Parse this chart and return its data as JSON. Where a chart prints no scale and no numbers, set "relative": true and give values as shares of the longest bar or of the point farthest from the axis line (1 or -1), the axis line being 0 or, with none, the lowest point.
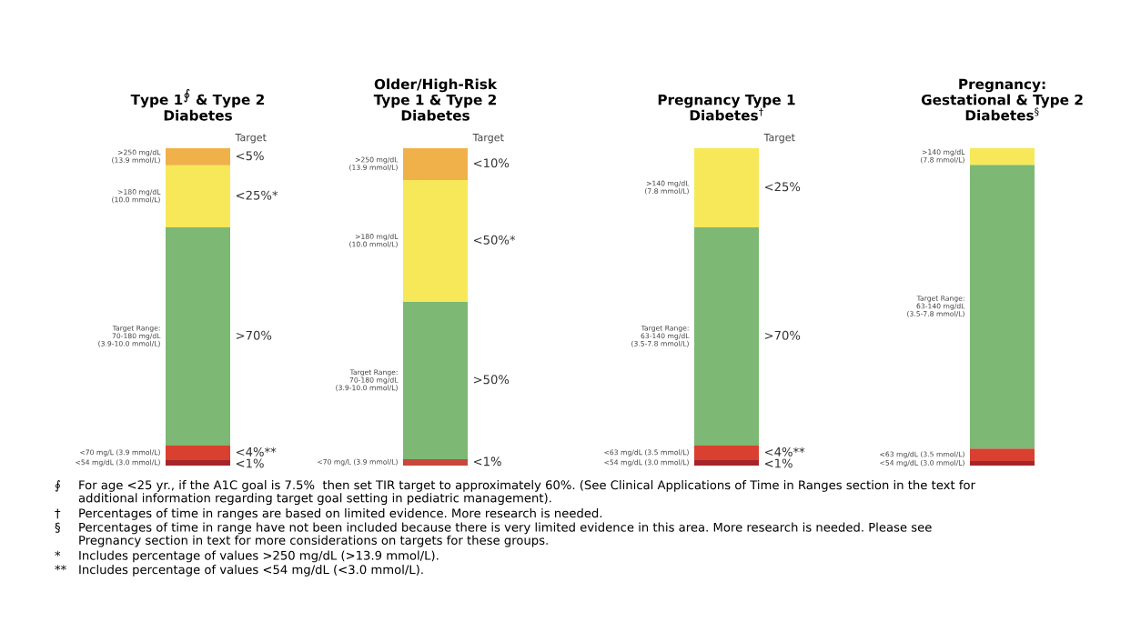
{
  "chart_data": [
    {
      "type": "bar",
      "title": "Type 1$^{∮}$ & Type 2\nDiabetes",
      "categories": [
        null
      ],
      "stacked": true,
      "relative": true,
      "series": [
        {
          "name": "<54 mg/dL (3.0 mmol/L)",
          "color": "#a5252a",
          "values": [
            0.017
          ]
        },
        {
          "name": "<70 mg/L (3.9 mmol/L)",
          "color": "#d9402f",
          "values": [
            0.046
          ]
        },
        {
          "name": "Target Range:\n70-180 mg/dL\n(3.9-10.0 mmol/L)",
          "color": "#7db874",
          "values": [
            0.688
          ]
        },
        {
          "name": ">180 mg/dL\n(10.0 mmol/L)",
          "color": "#f7e85a",
          "values": [
            0.195
          ]
        },
        {
          "name": ">250 mg/dL\n(13.9 mmol/L)",
          "color": "#f0b04a",
          "values": [
            0.054
          ]
        }
      ],
      "annotations": [
        "Target",
        "<5%",
        "<25%*",
        ">70%",
        "<4%**",
        "<1%",
        "∮ For age <25 yr., if the A1C goal is 7.5%  then set TIR target to approximately 60%. (See Clinical Applications of Time in Ranges section in the text for\nadditional information regarding target goal setting in pediatric management).",
        "† Percentages of time in ranges are based on limited evidence. More research is needed.",
        "§ Percentages of time in range have not been included because there is very limited evidence in this area. More research is needed. Please see\nPregnancy section in text for more considerations on targets for these groups.",
        "* Includes percentage of values >250 mg/dL (>13.9 mmol/L).",
        "** Includes percentage of values <54 mg/dL (<3.0 mmol/L)."
      ]
    },
    {
      "type": "bar",
      "title": "Older/High-Risk\nType 1 & Type 2\nDiabetes",
      "categories": [
        null
      ],
      "stacked": true,
      "relative": true,
      "series": [
        {
          "name": "<70 mg/L (3.9 mmol/L)",
          "color": "#c8473a",
          "values": [
            0.02
          ]
        },
        {
          "name": "Target Range:\n70-180 mg/dL\n(3.9-10.0 mmol/L)",
          "color": "#7db874",
          "values": [
            0.496
          ]
        },
        {
          "name": ">180 mg/dL\n(10.0 mmol/L)",
          "color": "#f7e85a",
          "values": [
            0.384
          ]
        },
        {
          "name": ">250 mg/dL\n(13.9 mmol/L)",
          "color": "#f0b04a",
          "values": [
            0.1
          ]
        }
      ],
      "annotations": [
        "Target",
        "<10%",
        "<50%*",
        ">50%",
        "<1%"
      ]
    },
    {
      "type": "bar",
      "title": "Pregnancy Type 1\nDiabetes$^{†}$",
      "categories": [
        null
      ],
      "stacked": true,
      "relative": true,
      "series": [
        {
          "name": "<54 mg/dL (3.0 mmol/L)",
          "color": "#a5252a",
          "values": [
            0.017
          ]
        },
        {
          "name": "<63 mg/dL (3.5 mmol/L)",
          "color": "#d9402f",
          "values": [
            0.046
          ]
        },
        {
          "name": "Target Range:\n63-140 mg/dL\n(3.5-7.8 mmol/L)",
          "color": "#7db874",
          "values": [
            0.688
          ]
        },
        {
          "name": ">140 mg/dL\n(7.8 mmol/L)",
          "color": "#f7e85a",
          "values": [
            0.249
          ]
        }
      ],
      "annotations": [
        "Target",
        "<25%",
        ">70%",
        "<4%**",
        "<1%"
      ]
    },
    {
      "type": "bar",
      "title": "Pregnancy:\nGestational & Type 2\nDiabetes$^{§}$",
      "categories": [
        null
      ],
      "stacked": true,
      "relative": true,
      "series": [
        {
          "name": "<54 mg/dL (3.0 mmol/L)",
          "color": "#a5252a",
          "values": [
            0.014
          ]
        },
        {
          "name": "<63 mg/dL (3.5 mmol/L)",
          "color": "#d9402f",
          "values": [
            0.04
          ]
        },
        {
          "name": "Target Range:\n63-140 mg/dL\n(3.5-7.8 mmol/L)",
          "color": "#7db874",
          "values": [
            0.894
          ]
        },
        {
          "name": ">140 mg/dL\n(7.8 mmol/L)",
          "color": "#f7e85a",
          "values": [
            0.052
          ]
        }
      ]
    }
  ]
}
